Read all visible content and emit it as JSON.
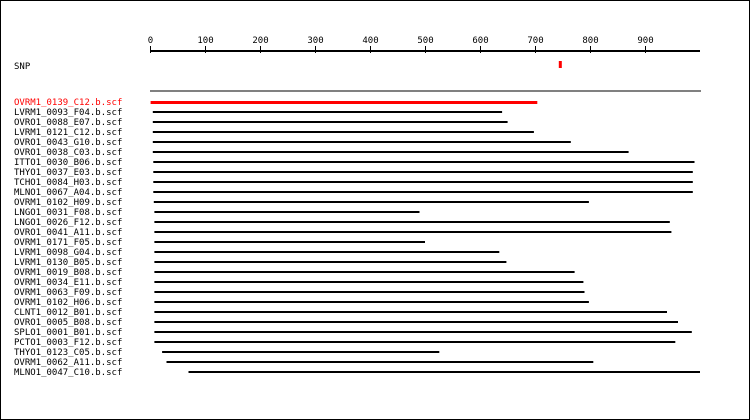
{
  "axis": {
    "ticks": [
      0,
      100,
      200,
      300,
      400,
      500,
      600,
      700,
      800,
      900
    ],
    "min": 0,
    "max": 1000
  },
  "snp": {
    "label": "SNP",
    "position": 746,
    "color": "#ff0000"
  },
  "colors": {
    "highlight": "#ff0000",
    "read": "#000000",
    "label": "#000000"
  },
  "reads": [
    {
      "name": "OVRM1_0139_C12.b.scf",
      "start": 1,
      "end": 704,
      "highlight": true
    },
    {
      "name": "LVRM1_0093_F04.b.scf",
      "start": 5,
      "end": 640
    },
    {
      "name": "OVRO1_0088_E07.b.scf",
      "start": 5,
      "end": 650
    },
    {
      "name": "LVRM1_0121_C12.b.scf",
      "start": 5,
      "end": 698
    },
    {
      "name": "OVRO1_0043_G10.b.scf",
      "start": 5,
      "end": 765
    },
    {
      "name": "OVRO1_0038_C03.b.scf",
      "start": 5,
      "end": 870
    },
    {
      "name": "ITTO1_0030_B06.b.scf",
      "start": 6,
      "end": 990
    },
    {
      "name": "THYO1_0037_E03.b.scf",
      "start": 6,
      "end": 987
    },
    {
      "name": "TCHO1_0084_H03.b.scf",
      "start": 6,
      "end": 987
    },
    {
      "name": "MLNO1_0067_A04.b.scf",
      "start": 6,
      "end": 987
    },
    {
      "name": "OVRM1_0102_H09.b.scf",
      "start": 7,
      "end": 798
    },
    {
      "name": "LNGO1_0031_F08.b.scf",
      "start": 8,
      "end": 490
    },
    {
      "name": "LNGO1_0026_F12.b.scf",
      "start": 8,
      "end": 945
    },
    {
      "name": "OVRO1_0041_A11.b.scf",
      "start": 8,
      "end": 948
    },
    {
      "name": "OVRM1_0171_F05.b.scf",
      "start": 8,
      "end": 500
    },
    {
      "name": "LVRM1_0098_G04.b.scf",
      "start": 8,
      "end": 635
    },
    {
      "name": "LVRM1_0130_B05.b.scf",
      "start": 8,
      "end": 648
    },
    {
      "name": "OVRM1_0019_B08.b.scf",
      "start": 8,
      "end": 772
    },
    {
      "name": "OVRM1_0034_E11.b.scf",
      "start": 8,
      "end": 788
    },
    {
      "name": "OVRM1_0063_F09.b.scf",
      "start": 8,
      "end": 790
    },
    {
      "name": "OVRM1_0102_H06.b.scf",
      "start": 8,
      "end": 798
    },
    {
      "name": "CLNT1_0012_B01.b.scf",
      "start": 8,
      "end": 940
    },
    {
      "name": "OVRO1_0005_B08.b.scf",
      "start": 8,
      "end": 960
    },
    {
      "name": "SPLO1_0001_B01.b.scf",
      "start": 8,
      "end": 985
    },
    {
      "name": "PCTO1_0003_F12.b.scf",
      "start": 8,
      "end": 955
    },
    {
      "name": "THYO1_0123_C05.b.scf",
      "start": 22,
      "end": 526
    },
    {
      "name": "OVRM1_0062_A11.b.scf",
      "start": 30,
      "end": 806
    },
    {
      "name": "MLNO1_0047_C10.b.scf",
      "start": 70,
      "end": 1000
    }
  ]
}
